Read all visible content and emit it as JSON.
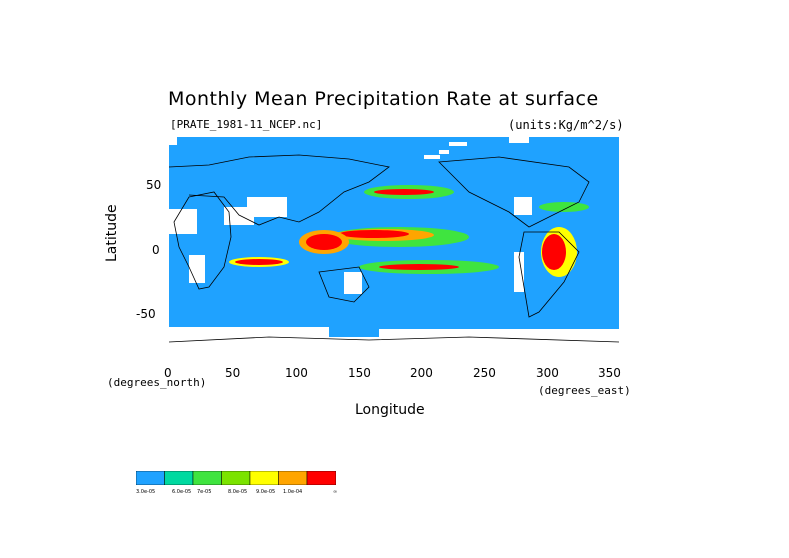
{
  "title": "Monthly Mean Precipitation Rate at surface",
  "file_label": "[PRATE_1981-11_NCEP.nc]",
  "units_label": "(units:Kg/m^2/s)",
  "axes": {
    "x_title": "Longitude",
    "y_title": "Latitude",
    "x_unit": "(degrees_east)",
    "y_unit": "(degrees_north)",
    "x_ticks": [
      "0",
      "50",
      "100",
      "150",
      "200",
      "250",
      "300",
      "350"
    ],
    "y_ticks": [
      "50",
      "0",
      "-50"
    ]
  },
  "colorbar": {
    "colors": [
      "#1fa2ff",
      "#00d9a0",
      "#3fe43f",
      "#7be300",
      "#ffff00",
      "#ffa500",
      "#ff0000"
    ],
    "labels": [
      "3.0e-05",
      "6.0e-05",
      "7e-05",
      "8.0e-05",
      "9.0e-05",
      "1.0e-04",
      "∞"
    ]
  },
  "colors": {
    "ocean": "#1fa2ff",
    "land_gap": "#ffffff",
    "coast": "#000000"
  }
}
